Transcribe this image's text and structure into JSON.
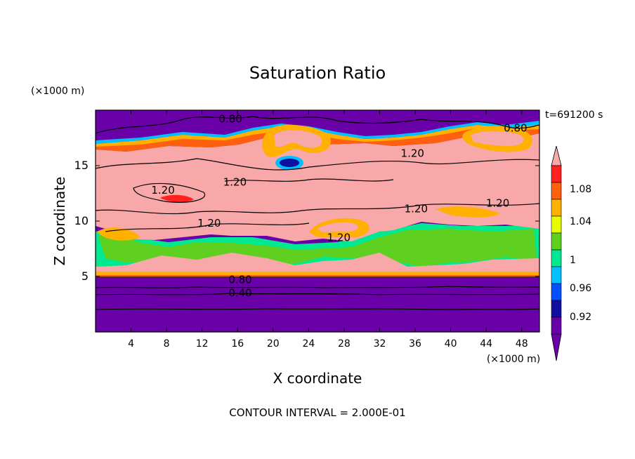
{
  "title": "Saturation Ratio",
  "time_label": "t=691200 s",
  "y_unit": "(×1000 m)",
  "x_unit": "(×1000 m)",
  "xlabel": "X coordinate",
  "ylabel": "Z coordinate",
  "footer": "CONTOUR INTERVAL = 2.000E-01",
  "chart_data": {
    "type": "heatmap",
    "title": "Saturation Ratio",
    "xlabel": "X coordinate",
    "ylabel": "Z coordinate",
    "x_range": [
      0,
      50
    ],
    "y_range": [
      0,
      20
    ],
    "x_ticks": [
      4,
      8,
      12,
      16,
      20,
      24,
      28,
      32,
      36,
      40,
      44,
      48
    ],
    "y_ticks": [
      5,
      10,
      15
    ],
    "colorbar": {
      "labels": [
        "0.92",
        "0.96",
        "1",
        "1.04",
        "1.08"
      ],
      "bands": [
        {
          "value": 0.9,
          "color": "#6a00a8"
        },
        {
          "value": 0.92,
          "color": "#1010a0"
        },
        {
          "value": 0.94,
          "color": "#0050ff"
        },
        {
          "value": 0.96,
          "color": "#00c0ff"
        },
        {
          "value": 0.98,
          "color": "#00e890"
        },
        {
          "value": 1.0,
          "color": "#60d020"
        },
        {
          "value": 1.02,
          "color": "#e8ff00"
        },
        {
          "value": 1.04,
          "color": "#ffb000"
        },
        {
          "value": 1.06,
          "color": "#ff6010"
        },
        {
          "value": 1.08,
          "color": "#ff2020"
        },
        {
          "value": 1.1,
          "color": "#f8a8a8"
        }
      ]
    },
    "contour_labels": [
      {
        "text": "0.80",
        "x": 15.2,
        "y": 19.2
      },
      {
        "text": "0.80",
        "x": 47.3,
        "y": 18.4
      },
      {
        "text": "1.20",
        "x": 35.7,
        "y": 16.1
      },
      {
        "text": "1.20",
        "x": 15.7,
        "y": 13.5
      },
      {
        "text": "1.20",
        "x": 7.6,
        "y": 12.8
      },
      {
        "text": "1.20",
        "x": 36.1,
        "y": 11.1
      },
      {
        "text": "1.20",
        "x": 45.3,
        "y": 11.6
      },
      {
        "text": "1.20",
        "x": 12.8,
        "y": 9.8
      },
      {
        "text": "1.20",
        "x": 27.4,
        "y": 8.5
      },
      {
        "text": "0.80",
        "x": 16.3,
        "y": 4.7
      },
      {
        "text": "0.40",
        "x": 16.3,
        "y": 3.5
      }
    ]
  }
}
